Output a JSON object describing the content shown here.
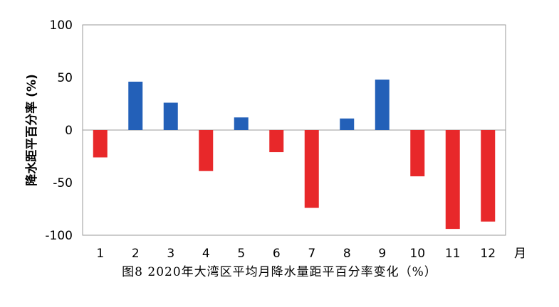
{
  "chart_data": {
    "type": "bar",
    "categories": [
      "1",
      "2",
      "3",
      "4",
      "5",
      "6",
      "7",
      "8",
      "9",
      "10",
      "11",
      "12"
    ],
    "values": [
      -26,
      46,
      26,
      -39,
      12,
      -21,
      -74,
      11,
      48,
      -44,
      -94,
      -87
    ],
    "ylabel": "降水距平百分率 (%)",
    "xunit": "月",
    "ylim": [
      -100,
      100
    ],
    "yticks": [
      100,
      50,
      0,
      -50,
      -100
    ],
    "grid": false,
    "positive_color": "#2360b8",
    "negative_color": "#e8282a",
    "axis_color": "#999999"
  },
  "caption": "图8  2020年大湾区平均月降水量距平百分率变化（%）"
}
